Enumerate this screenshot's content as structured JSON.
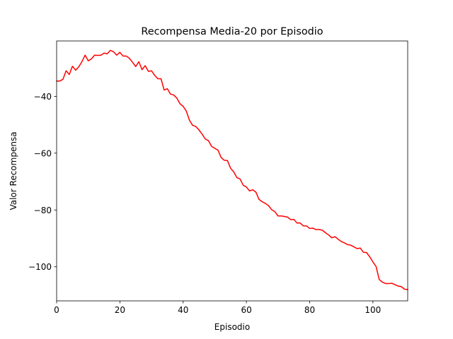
{
  "chart_data": {
    "type": "line",
    "title": "Recompensa Media-20 por Episodio",
    "xlabel": "Episodio",
    "ylabel": "Valor Recompensa",
    "xlim": [
      0,
      111
    ],
    "ylim": [
      -112,
      -20.5
    ],
    "xticks": [
      0,
      20,
      40,
      60,
      80,
      100
    ],
    "yticks": [
      -100,
      -80,
      -60,
      -40
    ],
    "xtick_labels": [
      "0",
      "20",
      "40",
      "60",
      "80",
      "100"
    ],
    "ytick_labels": [
      "−100",
      "−80",
      "−60",
      "−40"
    ],
    "grid": false,
    "series": [
      {
        "color": "#ff0000",
        "x": [
          0,
          1,
          2,
          3,
          4,
          5,
          6,
          7,
          8,
          9,
          10,
          11,
          12,
          13,
          14,
          15,
          16,
          17,
          18,
          19,
          20,
          21,
          22,
          23,
          24,
          25,
          26,
          27,
          28,
          29,
          30,
          31,
          32,
          33,
          34,
          35,
          36,
          37,
          38,
          39,
          40,
          41,
          42,
          43,
          44,
          45,
          46,
          47,
          48,
          49,
          50,
          51,
          52,
          53,
          54,
          55,
          56,
          57,
          58,
          59,
          60,
          61,
          62,
          63,
          64,
          65,
          66,
          67,
          68,
          69,
          70,
          71,
          72,
          73,
          74,
          75,
          76,
          77,
          78,
          79,
          80,
          81,
          82,
          83,
          84,
          85,
          86,
          87,
          88,
          89,
          90,
          91,
          92,
          93,
          94,
          95,
          96,
          97,
          98,
          99,
          100,
          101,
          102,
          103,
          104,
          105,
          106,
          107,
          108,
          109,
          110,
          111
        ],
        "y": [
          -34.6,
          -34.6,
          -34.0,
          -31.0,
          -32.3,
          -29.4,
          -30.8,
          -29.6,
          -27.8,
          -25.5,
          -27.5,
          -26.8,
          -25.5,
          -25.6,
          -25.5,
          -24.8,
          -25.0,
          -23.8,
          -24.3,
          -25.5,
          -24.5,
          -25.8,
          -25.8,
          -26.6,
          -28.0,
          -29.5,
          -27.8,
          -30.6,
          -29.2,
          -31.2,
          -31.0,
          -32.6,
          -33.8,
          -33.8,
          -37.8,
          -37.3,
          -39.2,
          -39.5,
          -40.6,
          -42.6,
          -43.5,
          -45.2,
          -48.4,
          -50.2,
          -50.6,
          -51.8,
          -53.3,
          -55.0,
          -55.6,
          -57.6,
          -58.3,
          -58.9,
          -61.5,
          -62.5,
          -62.6,
          -65.3,
          -66.6,
          -68.6,
          -69.1,
          -71.3,
          -71.9,
          -73.3,
          -72.9,
          -73.7,
          -76.3,
          -77.1,
          -77.7,
          -78.5,
          -79.9,
          -80.6,
          -82.1,
          -82.1,
          -82.3,
          -82.5,
          -83.4,
          -83.3,
          -84.6,
          -84.6,
          -85.6,
          -85.6,
          -86.5,
          -86.4,
          -86.9,
          -86.9,
          -87.1,
          -88.0,
          -88.8,
          -89.8,
          -89.4,
          -90.3,
          -91.1,
          -91.6,
          -92.2,
          -92.4,
          -93.0,
          -93.6,
          -93.4,
          -94.9,
          -95.0,
          -96.5,
          -98.3,
          -99.9,
          -104.5,
          -105.4,
          -105.9,
          -105.9,
          -105.8,
          -106.3,
          -106.8,
          -107.0,
          -107.9,
          -108.0
        ]
      }
    ]
  }
}
